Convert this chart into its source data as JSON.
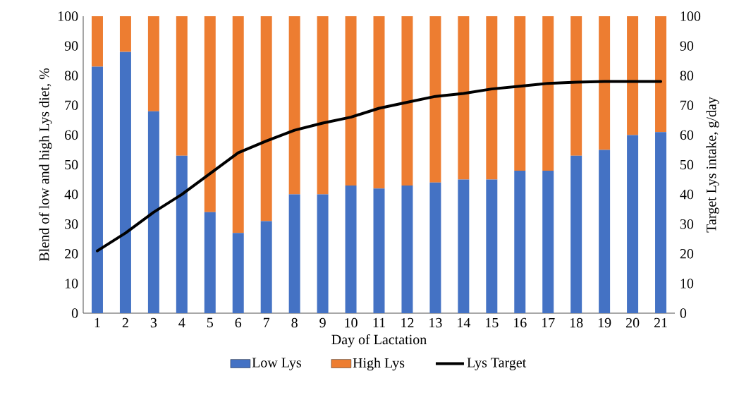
{
  "chart_data": {
    "type": "bar",
    "stacked": true,
    "xlabel": "Day of Lactation",
    "ylabel": "Blend of low and high Lys diet, %",
    "y2label": "Target Lys intake, g/day",
    "legend": "bottom",
    "categories": [
      "1",
      "2",
      "3",
      "4",
      "5",
      "6",
      "7",
      "8",
      "9",
      "10",
      "11",
      "12",
      "13",
      "14",
      "15",
      "16",
      "17",
      "18",
      "19",
      "20",
      "21"
    ],
    "ylim": [
      0,
      100
    ],
    "yticks": [
      0,
      10,
      20,
      30,
      40,
      50,
      60,
      70,
      80,
      90,
      100
    ],
    "y2lim": [
      0,
      100
    ],
    "y2ticks": [
      0,
      10,
      20,
      30,
      40,
      50,
      60,
      70,
      80,
      90,
      100
    ],
    "series": [
      {
        "name": "Low Lys",
        "color": "#4472c4",
        "values": [
          83,
          88,
          68,
          53,
          34,
          27,
          31,
          40,
          40,
          43,
          42,
          43,
          44,
          45,
          45,
          48,
          48,
          53,
          55,
          60,
          61
        ]
      },
      {
        "name": "High Lys",
        "color": "#ed7d31",
        "values": [
          17,
          12,
          32,
          47,
          66,
          73,
          69,
          60,
          60,
          57,
          58,
          57,
          56,
          55,
          55,
          52,
          52,
          47,
          45,
          40,
          39
        ]
      },
      {
        "name": "Lys Target",
        "type": "line",
        "axis": "y2",
        "color": "#000000",
        "values": [
          21,
          27,
          34,
          40,
          47,
          54,
          58,
          61.6,
          64,
          66,
          69,
          71,
          73,
          74,
          75.5,
          76.4,
          77.4,
          77.8,
          78,
          78,
          78
        ]
      }
    ]
  }
}
